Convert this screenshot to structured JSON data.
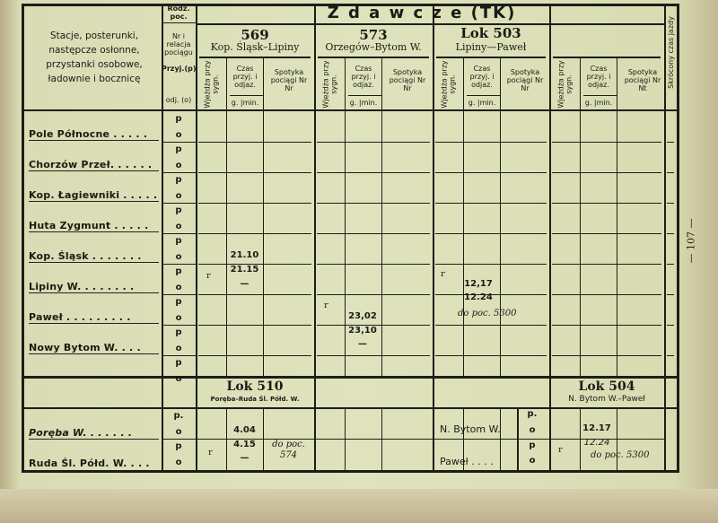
{
  "header": {
    "stations_label": "Stacje, posterunki, następcze osłonne, przystanki osobowe, ładownie i bocznicę",
    "rodz_poc": "Rodz. poc.",
    "nr_relacja": "Nr i relacja pociągu",
    "przyj": "Przyj.(p)",
    "odj": "odj. (o)",
    "title": "Z d a w c z e (TK)",
    "skrocony": "Skrócony czas jazdy",
    "sub_wjezdza": "Wjeżdża przy sygn.",
    "sub_czas": "Czas przyj. i odjaz.",
    "sub_gmin": "g. |min.",
    "sub_spotyka": "Spotyka pociągi Nr Nr",
    "sub_spotyka_last": "Spotyka pociągi Nr Nt"
  },
  "trains": [
    {
      "number": "569",
      "relation": "Kop. Śląsk–Lipiny"
    },
    {
      "number": "573",
      "relation": "Orzegów–Bytom W."
    },
    {
      "number": "Lok 503",
      "relation": "Lipiny—Paweł"
    }
  ],
  "p_label": "p",
  "o_label": "o",
  "stations": [
    "Pole Północne . . . . .",
    "Chorzów Przeł. . . . . .",
    "Kop. Łagiewniki . . . . .",
    "Huta Zygmunt . . . . .",
    "Kop. Śląsk . . . . . . .",
    "Lipiny W. . . . . . . .",
    "Paweł . . . . . . . . .",
    "Nowy Bytom W. . . ."
  ],
  "times": {
    "t569_kop_o": "21.10",
    "t569_lip_p": "21.15",
    "dash": "—",
    "t573_pawel_o": "23,02",
    "t573_nowy_p": "23,10",
    "t503_lip_o": "12,17",
    "t503_pawel_p": "12.24",
    "t503_note": "do poc. 5300",
    "signal_mark": "ʳ"
  },
  "lower": {
    "lok510": {
      "number": "Lok 510",
      "relation": "Poręba–Ruda Śl. Półd. W."
    },
    "lok504": {
      "number": "Lok 504",
      "relation": "N. Bytom W.–Paweł"
    },
    "stations_left": [
      "Poręba W. . . . . . .",
      "Ruda Śl. Półd. W. . . ."
    ],
    "stations_right": [
      "N. Bytom W.",
      "Paweł . . . ."
    ],
    "p_dot": "p.",
    "t510_o": "4.04",
    "t510_p": "4.15",
    "t510_note": "do poc. 574",
    "t504_o": "12.17",
    "t504_p": "12.24",
    "t504_note": "do poc. 5300"
  },
  "page_number": "— 107 —"
}
